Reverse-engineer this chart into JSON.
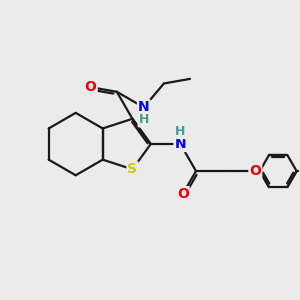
{
  "background_color": "#ebebeb",
  "bond_color": "#1a1a1a",
  "atom_colors": {
    "N": "#0000ee",
    "O": "#ee0000",
    "S": "#cccc00",
    "H": "#4a9999",
    "C": "#1a1a1a"
  },
  "figsize": [
    3.0,
    3.0
  ],
  "dpi": 100,
  "xlim": [
    0,
    10
  ],
  "ylim": [
    0,
    10
  ]
}
